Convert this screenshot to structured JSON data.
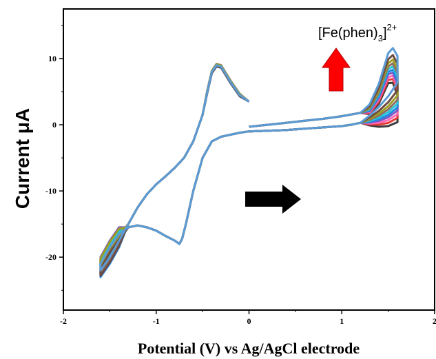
{
  "chart_data": {
    "type": "line",
    "title": "",
    "xlabel": "Potential (V) vs Ag/AgCl electrode",
    "ylabel": "Current  μA",
    "xlim": [
      -2,
      2
    ],
    "ylim": [
      -28,
      17.5
    ],
    "x_ticks": [
      -2,
      -1,
      0,
      1,
      2
    ],
    "x_tick_labels": [
      "-2",
      "-1",
      "0",
      "1",
      "2"
    ],
    "y_ticks": [
      -20,
      -10,
      0,
      10
    ],
    "y_tick_labels": [
      "-20",
      "-10",
      "0",
      "10"
    ],
    "grid": false,
    "legend": "none",
    "annotation": {
      "main": "[Fe(phen)",
      "sub": "3",
      "close": "]",
      "sup": "2+"
    },
    "arrows": [
      {
        "direction": "up",
        "color": "#ff0000"
      },
      {
        "direction": "right",
        "color": "#000000"
      }
    ],
    "series_colors": [
      "#3a3a3a",
      "#e53935",
      "#ff69b4",
      "#7e57c2",
      "#1e88e5",
      "#26c6da",
      "#8d6e63",
      "#9e9d24",
      "#6d4c41",
      "#5b9bd5"
    ],
    "series": [
      {
        "scan": 1,
        "peak_fwd": 5.0,
        "offset": 0.0
      },
      {
        "scan": 2,
        "peak_fwd": 5.8,
        "offset": 0.3
      },
      {
        "scan": 3,
        "peak_fwd": 6.5,
        "offset": -0.3
      },
      {
        "scan": 4,
        "peak_fwd": 7.2,
        "offset": 0.5
      },
      {
        "scan": 5,
        "peak_fwd": 7.8,
        "offset": -0.5
      },
      {
        "scan": 6,
        "peak_fwd": 8.5,
        "offset": 0.2
      },
      {
        "scan": 7,
        "peak_fwd": 9.2,
        "offset": -0.2
      },
      {
        "scan": 8,
        "peak_fwd": 10.0,
        "offset": 0.4
      },
      {
        "scan": 9,
        "peak_fwd": 11.0,
        "offset": -0.4
      },
      {
        "scan": 10,
        "peak_fwd": 12.5,
        "offset": 0.0
      }
    ],
    "base_curve": {
      "x": [
        0.0,
        -0.1,
        -0.2,
        -0.3,
        -0.35,
        -0.4,
        -0.45,
        -0.5,
        -0.6,
        -0.7,
        -0.8,
        -0.9,
        -1.0,
        -1.1,
        -1.2,
        -1.3,
        -1.4,
        -1.5,
        -1.6,
        -1.6,
        -1.5,
        -1.4,
        -1.3,
        -1.2,
        -1.1,
        -1.0,
        -0.9,
        -0.8,
        -0.75,
        -0.72,
        -0.68,
        -0.6,
        -0.5,
        -0.4,
        -0.3,
        -0.2,
        -0.1,
        0.0,
        0.2,
        0.4,
        0.6,
        0.8,
        1.0,
        1.1,
        1.2,
        1.3,
        1.4,
        1.5,
        1.6,
        1.6,
        1.55,
        1.5,
        1.4,
        1.3,
        1.2,
        1.0,
        0.8,
        0.6,
        0.4,
        0.2,
        0.0
      ],
      "y": [
        3.5,
        4.5,
        6.5,
        8.8,
        9.0,
        8.0,
        5.0,
        1.5,
        -2.5,
        -5.0,
        -6.5,
        -7.8,
        -9.0,
        -10.5,
        -12.5,
        -15.0,
        -17.5,
        -20.0,
        -22.0,
        -21.0,
        -18.5,
        -16.5,
        -15.5,
        -15.2,
        -15.5,
        -16.0,
        -16.8,
        -17.5,
        -18.0,
        -17.2,
        -15.0,
        -10.0,
        -5.0,
        -2.5,
        -1.8,
        -1.5,
        -1.2,
        -1.0,
        -0.9,
        -0.8,
        -0.6,
        -0.4,
        -0.2,
        0.0,
        0.3,
        0.8,
        1.5,
        2.5,
        4.0,
        8.0,
        9.5,
        9.0,
        5.0,
        2.5,
        1.8,
        1.3,
        0.9,
        0.6,
        0.3,
        0.0,
        -0.3
      ]
    }
  }
}
